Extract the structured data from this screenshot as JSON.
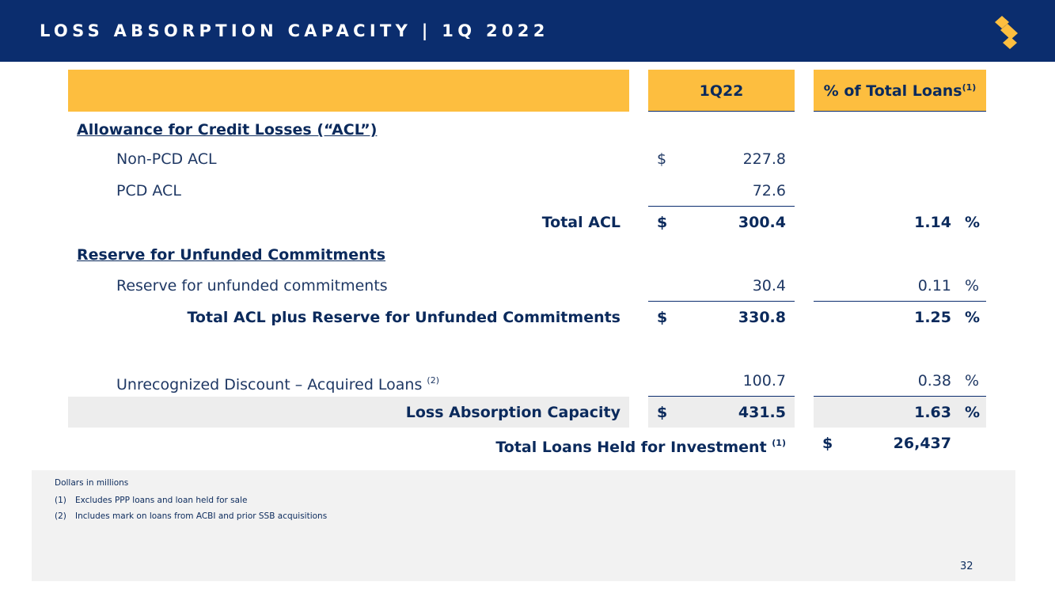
{
  "header": {
    "title": "LOSS ABSORPTION CAPACITY | 1Q 2022",
    "logo_icon": "stylized-s-logo",
    "accent_color": "#fdbe3f",
    "brand_color": "#0b2d6e"
  },
  "table": {
    "col_period": "1Q22",
    "col_pct": "% of Total Loans",
    "col_pct_note": "(1)",
    "section_acl": "Allowance for Credit Losses (“ACL”)",
    "rows": {
      "non_pcd": {
        "label": "Non-PCD ACL",
        "currency": "$",
        "value": "227.8"
      },
      "pcd": {
        "label": "PCD ACL",
        "value": "72.6"
      },
      "total_acl": {
        "label": "Total ACL",
        "currency": "$",
        "value": "300.4",
        "pct": "1.14",
        "pct_sign": "%"
      },
      "reserve": {
        "label": "Reserve for unfunded commitments",
        "value": "30.4",
        "pct": "0.11",
        "pct_sign": "%"
      },
      "total_acl_reserve": {
        "label": "Total ACL plus Reserve for Unfunded Commitments",
        "currency": "$",
        "value": "330.8",
        "pct": "1.25",
        "pct_sign": "%"
      },
      "discount": {
        "label": "Unrecognized Discount – Acquired Loans",
        "note": "(2)",
        "value": "100.7",
        "pct": "0.38",
        "pct_sign": "%"
      },
      "lac": {
        "label": "Loss Absorption Capacity",
        "currency": "$",
        "value": "431.5",
        "pct": "1.63",
        "pct_sign": "%"
      },
      "total_loans": {
        "label": "Total Loans Held for Investment",
        "note": "(1)",
        "currency": "$",
        "value": "26,437"
      }
    },
    "section_reserve": "Reserve for Unfunded Commitments"
  },
  "footnotes": {
    "units": "Dollars in millions",
    "items": [
      {
        "num": "(1)",
        "text": "Excludes PPP loans and loan held for sale"
      },
      {
        "num": "(2)",
        "text": "Includes mark on loans from ACBI and prior SSB acquisitions"
      }
    ]
  },
  "page_number": "32"
}
